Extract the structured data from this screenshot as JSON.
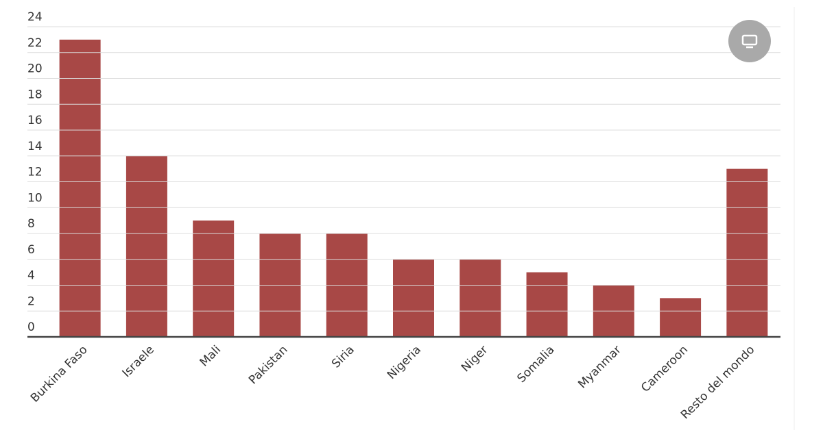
{
  "chart_data": {
    "type": "bar",
    "categories": [
      "Burkina Faso",
      "Israele",
      "Mali",
      "Pakistan",
      "Siria",
      "Nigeria",
      "Niger",
      "Somalia",
      "Myanmar",
      "Cameroon",
      "Resto del mondo"
    ],
    "values": [
      23,
      14,
      9,
      8,
      8,
      6,
      6,
      5,
      4,
      3,
      13
    ],
    "color": "#a84846",
    "ylim": [
      0,
      24
    ],
    "yticks": [
      0,
      2,
      4,
      6,
      8,
      10,
      12,
      14,
      16,
      18,
      20,
      22,
      24
    ],
    "grid": true
  }
}
